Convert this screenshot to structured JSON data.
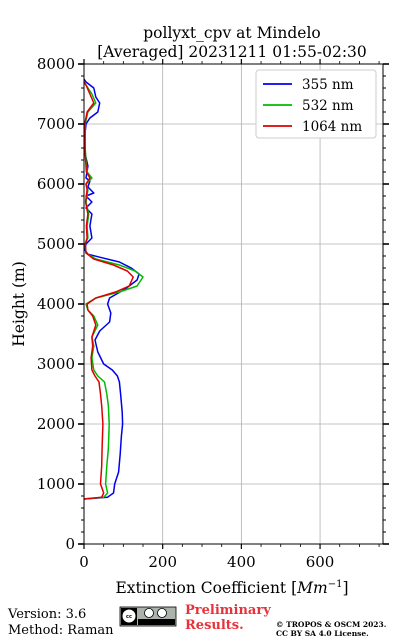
{
  "chart_data": {
    "type": "line",
    "title": "pollyxt_cpv at Mindelo",
    "subtitle": "[Averaged] 20231211 01:55-02:30",
    "xlabel": "Extinction Coefficient [",
    "xlabel_unit_base": "Mm",
    "xlabel_unit_exp": "−1",
    "xlabel_close": "]",
    "ylabel": "Height (m)",
    "xlim": [
      0,
      760
    ],
    "ylim": [
      0,
      8000
    ],
    "x_ticks": [
      "0",
      "200",
      "400",
      "600"
    ],
    "x_tick_values": [
      0,
      200,
      400,
      600
    ],
    "y_ticks": [
      "0",
      "1000",
      "2000",
      "3000",
      "4000",
      "5000",
      "6000",
      "7000",
      "8000"
    ],
    "y_tick_values": [
      0,
      1000,
      2000,
      3000,
      4000,
      5000,
      6000,
      7000,
      8000
    ],
    "grid": true,
    "legend_position": "top-right",
    "series": [
      {
        "name": "355 nm",
        "color": "#0000ee",
        "points": [
          [
            0,
            750
          ],
          [
            60,
            780
          ],
          [
            75,
            850
          ],
          [
            78,
            1000
          ],
          [
            88,
            1200
          ],
          [
            92,
            1500
          ],
          [
            95,
            1800
          ],
          [
            98,
            2000
          ],
          [
            97,
            2200
          ],
          [
            93,
            2500
          ],
          [
            90,
            2700
          ],
          [
            85,
            2800
          ],
          [
            72,
            2900
          ],
          [
            50,
            3000
          ],
          [
            35,
            3200
          ],
          [
            28,
            3400
          ],
          [
            40,
            3550
          ],
          [
            65,
            3700
          ],
          [
            68,
            3850
          ],
          [
            60,
            4000
          ],
          [
            65,
            4100
          ],
          [
            105,
            4250
          ],
          [
            135,
            4400
          ],
          [
            140,
            4500
          ],
          [
            120,
            4600
          ],
          [
            90,
            4700
          ],
          [
            40,
            4780
          ],
          [
            10,
            4830
          ],
          [
            2,
            4900
          ],
          [
            5,
            5000
          ],
          [
            20,
            5100
          ],
          [
            15,
            5300
          ],
          [
            20,
            5500
          ],
          [
            5,
            5600
          ],
          [
            20,
            5700
          ],
          [
            5,
            5800
          ],
          [
            25,
            5850
          ],
          [
            10,
            5950
          ],
          [
            15,
            6050
          ],
          [
            5,
            6100
          ],
          [
            10,
            6300
          ],
          [
            3,
            6500
          ],
          [
            2,
            6800
          ],
          [
            5,
            7000
          ],
          [
            15,
            7100
          ],
          [
            35,
            7200
          ],
          [
            40,
            7350
          ],
          [
            30,
            7450
          ],
          [
            25,
            7600
          ],
          [
            5,
            7700
          ],
          [
            0,
            7750
          ]
        ]
      },
      {
        "name": "532 nm",
        "color": "#00bb00",
        "points": [
          [
            0,
            750
          ],
          [
            50,
            780
          ],
          [
            60,
            850
          ],
          [
            55,
            1000
          ],
          [
            58,
            1300
          ],
          [
            62,
            1600
          ],
          [
            64,
            2000
          ],
          [
            62,
            2300
          ],
          [
            58,
            2500
          ],
          [
            52,
            2700
          ],
          [
            35,
            2800
          ],
          [
            25,
            2900
          ],
          [
            20,
            3100
          ],
          [
            25,
            3300
          ],
          [
            20,
            3450
          ],
          [
            35,
            3650
          ],
          [
            25,
            3800
          ],
          [
            10,
            3900
          ],
          [
            5,
            4000
          ],
          [
            30,
            4100
          ],
          [
            90,
            4200
          ],
          [
            135,
            4300
          ],
          [
            150,
            4450
          ],
          [
            130,
            4550
          ],
          [
            90,
            4650
          ],
          [
            30,
            4750
          ],
          [
            5,
            4850
          ],
          [
            3,
            5000
          ],
          [
            10,
            5100
          ],
          [
            8,
            5300
          ],
          [
            12,
            5500
          ],
          [
            5,
            5700
          ],
          [
            10,
            5900
          ],
          [
            5,
            6000
          ],
          [
            20,
            6100
          ],
          [
            8,
            6200
          ],
          [
            5,
            6400
          ],
          [
            3,
            6600
          ],
          [
            3,
            7000
          ],
          [
            10,
            7200
          ],
          [
            30,
            7350
          ],
          [
            20,
            7500
          ],
          [
            5,
            7650
          ],
          [
            0,
            7700
          ]
        ]
      },
      {
        "name": "1064 nm",
        "color": "#dd0000",
        "points": [
          [
            0,
            750
          ],
          [
            45,
            780
          ],
          [
            50,
            850
          ],
          [
            42,
            1000
          ],
          [
            45,
            1300
          ],
          [
            46,
            1600
          ],
          [
            48,
            2000
          ],
          [
            45,
            2300
          ],
          [
            42,
            2500
          ],
          [
            38,
            2700
          ],
          [
            28,
            2800
          ],
          [
            20,
            2900
          ],
          [
            18,
            3100
          ],
          [
            22,
            3300
          ],
          [
            20,
            3450
          ],
          [
            30,
            3650
          ],
          [
            22,
            3800
          ],
          [
            10,
            3900
          ],
          [
            8,
            4000
          ],
          [
            30,
            4100
          ],
          [
            80,
            4200
          ],
          [
            115,
            4300
          ],
          [
            125,
            4450
          ],
          [
            110,
            4550
          ],
          [
            75,
            4650
          ],
          [
            25,
            4750
          ],
          [
            5,
            4850
          ],
          [
            3,
            5000
          ],
          [
            8,
            5100
          ],
          [
            6,
            5300
          ],
          [
            10,
            5500
          ],
          [
            4,
            5700
          ],
          [
            8,
            5900
          ],
          [
            5,
            6000
          ],
          [
            15,
            6100
          ],
          [
            6,
            6200
          ],
          [
            4,
            6400
          ],
          [
            2,
            6600
          ],
          [
            2,
            7000
          ],
          [
            8,
            7200
          ],
          [
            25,
            7350
          ],
          [
            15,
            7500
          ],
          [
            5,
            7650
          ],
          [
            0,
            7700
          ]
        ]
      }
    ]
  },
  "footer": {
    "version": "Version: 3.6",
    "method": "Method: Raman",
    "preliminary_line1": "Preliminary",
    "preliminary_line2": "Results.",
    "copyright_line1": "© TROPOS & OSCM 2023.",
    "copyright_line2": "CC BY SA 4.0 License.",
    "license_badge": "cc-by-sa-badge"
  }
}
